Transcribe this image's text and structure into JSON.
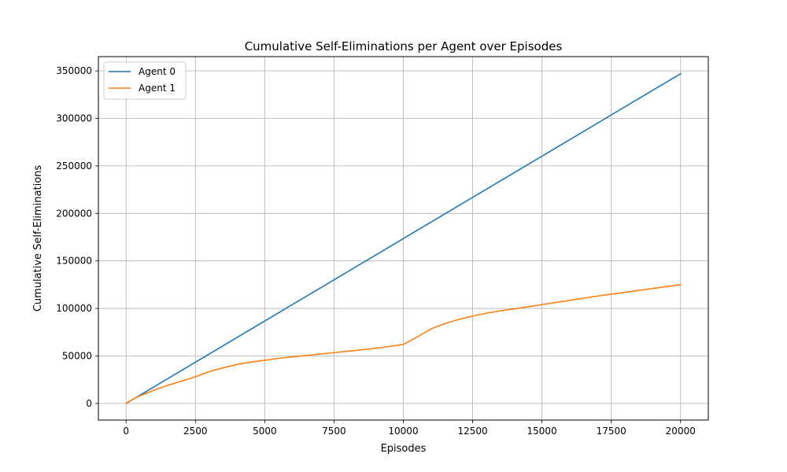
{
  "chart_data": {
    "type": "line",
    "title": "Cumulative Self-Eliminations per Agent over Episodes",
    "xlabel": "Episodes",
    "ylabel": "Cumulative Self-Eliminations",
    "xlim": [
      -1000,
      21000
    ],
    "ylim": [
      -17500,
      365000
    ],
    "xticks": [
      0,
      2500,
      5000,
      7500,
      10000,
      12500,
      15000,
      17500,
      20000
    ],
    "yticks": [
      0,
      50000,
      100000,
      150000,
      200000,
      250000,
      300000,
      350000
    ],
    "grid": true,
    "legend_position": "upper-left",
    "series": [
      {
        "name": "Agent 0",
        "color": "#1f77b4",
        "x": [
          0,
          20000
        ],
        "y": [
          0,
          347000
        ]
      },
      {
        "name": "Agent 1",
        "color": "#ff7f0e",
        "x": [
          0,
          250,
          500,
          750,
          1000,
          1500,
          2000,
          2500,
          3000,
          3500,
          4000,
          4500,
          5000,
          5500,
          6000,
          6500,
          7000,
          7500,
          8000,
          8500,
          9000,
          9500,
          10000,
          10500,
          11000,
          11500,
          12000,
          12500,
          13000,
          13500,
          14000,
          15000,
          16000,
          17000,
          18000,
          19000,
          20000
        ],
        "y": [
          0,
          4500,
          8000,
          11000,
          14000,
          19000,
          23500,
          28000,
          33500,
          37500,
          41000,
          43500,
          45500,
          47500,
          49000,
          50500,
          52000,
          53500,
          55000,
          56500,
          58000,
          60000,
          62000,
          70000,
          78500,
          84000,
          88500,
          92000,
          95000,
          97500,
          99500,
          104000,
          108500,
          113000,
          117000,
          121000,
          125000
        ]
      }
    ]
  }
}
